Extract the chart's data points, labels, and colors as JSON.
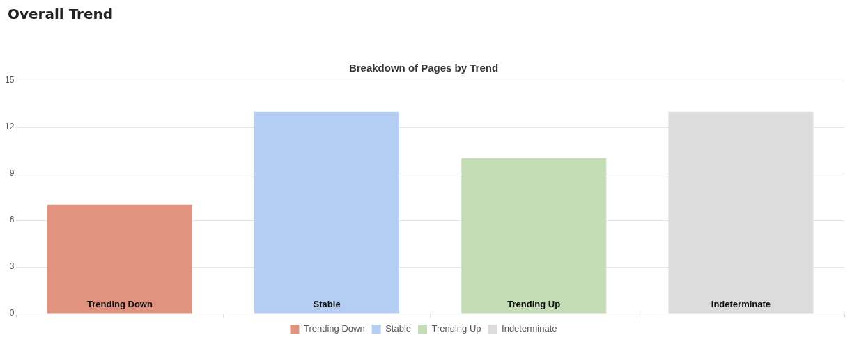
{
  "chart_data": {
    "type": "bar",
    "title": "Overall Trend",
    "subtitle": "Breakdown of Pages by Trend",
    "categories": [
      "Trending Down",
      "Stable",
      "Trending Up",
      "Indeterminate"
    ],
    "series": [
      {
        "name": "Trending Down",
        "color": "#e2937f",
        "values": [
          7,
          null,
          null,
          null
        ]
      },
      {
        "name": "Stable",
        "color": "#b3cdf3",
        "values": [
          null,
          13,
          null,
          null
        ]
      },
      {
        "name": "Trending Up",
        "color": "#c4ddb6",
        "values": [
          null,
          null,
          10,
          null
        ]
      },
      {
        "name": "Indeterminate",
        "color": "#dcdcdc",
        "values": [
          null,
          null,
          null,
          13
        ]
      }
    ],
    "ylim": [
      0,
      15
    ],
    "yticks": [
      0,
      3,
      6,
      9,
      12,
      15
    ],
    "grid": "y",
    "legend": "bottom"
  }
}
